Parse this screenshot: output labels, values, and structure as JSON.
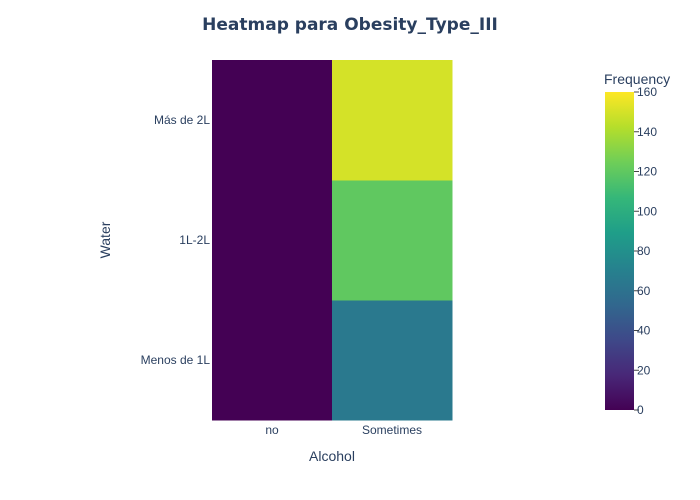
{
  "chart_data": {
    "type": "heatmap",
    "title": "Heatmap para Obesity_Type_III",
    "xlabel": "Alcohol",
    "ylabel": "Water",
    "x_categories": [
      "no",
      "Sometimes"
    ],
    "y_categories": [
      "Menos de 1L",
      "1L-2L",
      "Más de 2L"
    ],
    "z": [
      [
        0,
        65
      ],
      [
        0,
        120
      ],
      [
        0,
        150
      ]
    ],
    "colorbar": {
      "title": "Frequency",
      "range": [
        0,
        160
      ],
      "ticks": [
        "0",
        "20",
        "40",
        "60",
        "80",
        "100",
        "120",
        "140",
        "160"
      ],
      "colorscale": "Viridis"
    },
    "grid": false
  }
}
